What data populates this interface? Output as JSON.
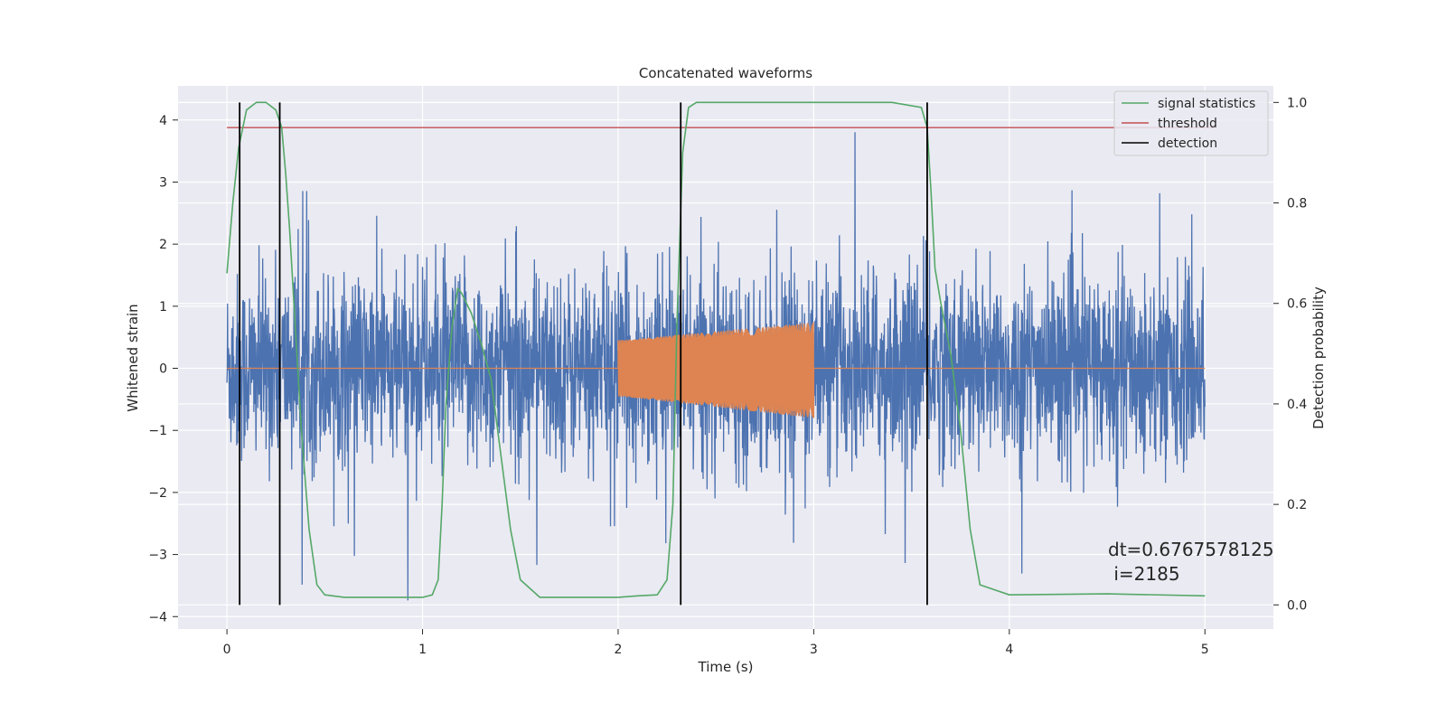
{
  "chart_data": {
    "type": "line",
    "title": "Concatenated waveforms",
    "xlabel": "Time (s)",
    "ylabel": "Whitened strain",
    "y2label": "Detection probability",
    "xlim": [
      -0.25,
      5.35
    ],
    "ylim": [
      -4.2,
      4.55
    ],
    "y2lim": [
      -0.048,
      1.033
    ],
    "x_ticks": [
      "0",
      "1",
      "2",
      "3",
      "4",
      "5"
    ],
    "y_ticks": [
      "4",
      "3",
      "2",
      "1",
      "0",
      "−1",
      "−2",
      "−3",
      "−4"
    ],
    "y2_ticks": [
      "1.0",
      "0.8",
      "0.6",
      "0.4",
      "0.2",
      "0.0"
    ],
    "grid": true,
    "legend": {
      "placement": "top-right",
      "entries": [
        {
          "label": "signal statistics",
          "color": "#55a868"
        },
        {
          "label": "threshold",
          "color": "#c44e52"
        },
        {
          "label": "detection",
          "color": "#000000"
        }
      ]
    },
    "series": [
      {
        "role": "whitened-strain-noise",
        "color": "#4c72b0",
        "x_range": [
          0,
          5
        ],
        "envelope": {
          "typical_amplitude": 1.6,
          "spike_max": 4.0,
          "spike_min": -3.8
        }
      },
      {
        "role": "injected-chirp",
        "color": "#dd8452",
        "x_range": [
          0,
          5
        ],
        "chirp_window": [
          2.0,
          3.0
        ],
        "amplitude_start": 0.45,
        "amplitude_end": 0.77
      },
      {
        "name": "signal statistics",
        "axis": "right",
        "color": "#55a868",
        "x": [
          0.0,
          0.03,
          0.06,
          0.1,
          0.15,
          0.2,
          0.25,
          0.28,
          0.3,
          0.32,
          0.35,
          0.38,
          0.42,
          0.46,
          0.5,
          0.6,
          0.8,
          1.0,
          1.05,
          1.08,
          1.1,
          1.12,
          1.15,
          1.18,
          1.2,
          1.25,
          1.3,
          1.35,
          1.4,
          1.45,
          1.5,
          1.6,
          1.8,
          2.0,
          2.1,
          2.2,
          2.25,
          2.28,
          2.3,
          2.33,
          2.36,
          2.4,
          2.6,
          3.0,
          3.4,
          3.55,
          3.58,
          3.6,
          3.62,
          3.65,
          3.7,
          3.75,
          3.8,
          3.85,
          4.0,
          4.5,
          5.0
        ],
        "y": [
          0.66,
          0.8,
          0.91,
          0.985,
          1.0,
          1.0,
          0.985,
          0.95,
          0.86,
          0.75,
          0.55,
          0.35,
          0.15,
          0.04,
          0.02,
          0.015,
          0.015,
          0.015,
          0.02,
          0.05,
          0.2,
          0.4,
          0.55,
          0.63,
          0.62,
          0.58,
          0.52,
          0.45,
          0.3,
          0.15,
          0.05,
          0.015,
          0.015,
          0.015,
          0.018,
          0.02,
          0.05,
          0.2,
          0.55,
          0.9,
          0.99,
          1.0,
          1.0,
          1.0,
          1.0,
          0.99,
          0.95,
          0.82,
          0.67,
          0.6,
          0.5,
          0.35,
          0.15,
          0.04,
          0.02,
          0.022,
          0.018
        ]
      },
      {
        "name": "threshold",
        "axis": "right",
        "color": "#c44e52",
        "x": [
          0,
          5.05
        ],
        "y": [
          0.95,
          0.95
        ]
      },
      {
        "name": "detection",
        "color": "#000000",
        "x": [
          0.065,
          0.27,
          2.32,
          3.58
        ]
      }
    ],
    "annotation": {
      "line1": "dt=0.6767578125",
      "line2": " i=2185"
    }
  }
}
